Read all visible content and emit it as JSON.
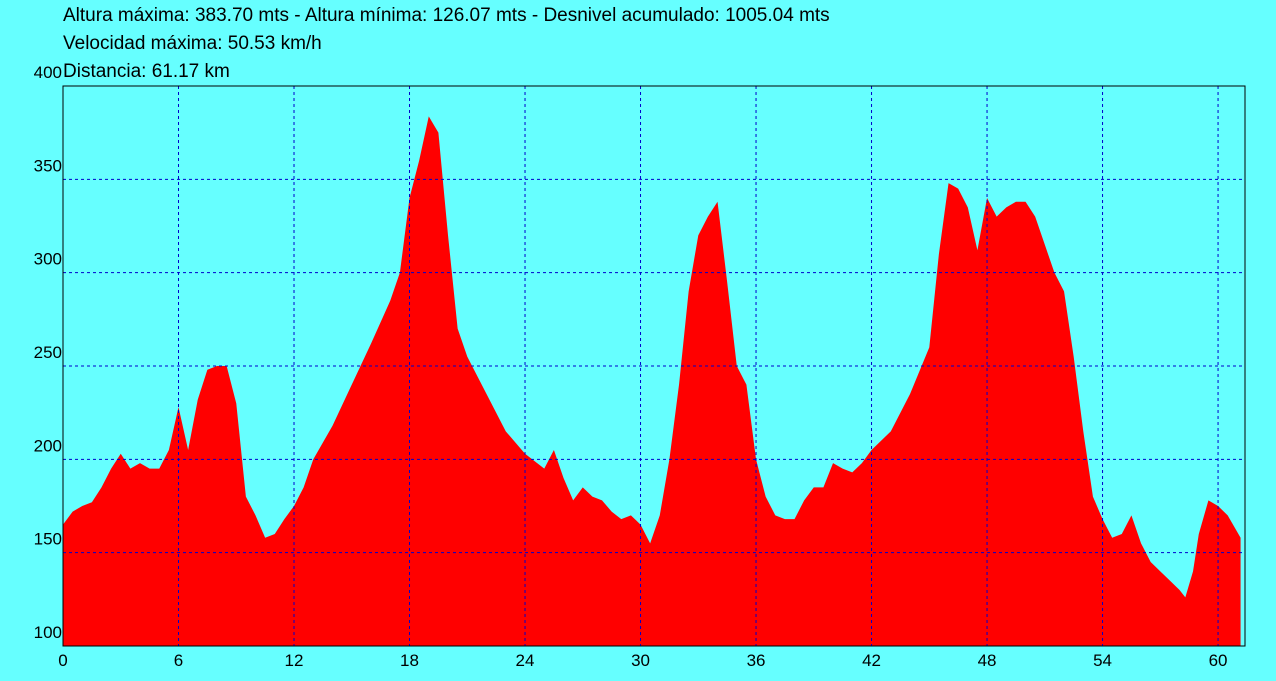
{
  "chart_data": {
    "type": "area",
    "title": "Altura máxima: 383.70 mts - Altura mínima: 126.07 mts - Desnivel acumulado: 1005.04 mts",
    "subtitle": "Velocidad máxima: 50.53 km/h",
    "annotations": [
      "Distancia: 61.17 km"
    ],
    "x": [
      0,
      0.5,
      1,
      1.5,
      2,
      2.5,
      3,
      3.5,
      4,
      4.5,
      5,
      5.5,
      6,
      6.5,
      7,
      7.5,
      8,
      8.5,
      9,
      9.5,
      10,
      10.5,
      11,
      11.5,
      12,
      12.5,
      13,
      14,
      15,
      16,
      17,
      17.5,
      18,
      18.5,
      19,
      19.5,
      20,
      20.5,
      21,
      22,
      23,
      24,
      25,
      25.5,
      26,
      26.5,
      27,
      27.5,
      28,
      28.5,
      29,
      29.5,
      30,
      30.5,
      31,
      31.5,
      32,
      32.5,
      33,
      33.5,
      34,
      34.5,
      35,
      35.5,
      36,
      36.5,
      37,
      37.5,
      38,
      38.5,
      39,
      39.5,
      40,
      40.5,
      41,
      41.5,
      42,
      43,
      44,
      45,
      45.5,
      46,
      46.5,
      47,
      47.5,
      48,
      48.5,
      49,
      49.5,
      50,
      50.5,
      51,
      51.5,
      52,
      52.5,
      53,
      53.5,
      54,
      54.5,
      55,
      55.5,
      56,
      56.5,
      57,
      57.5,
      58,
      58.3,
      58.7,
      59,
      59.5,
      60,
      60.5,
      61.17
    ],
    "values": [
      165,
      172,
      175,
      177,
      185,
      195,
      203,
      195,
      198,
      195,
      195,
      205,
      228,
      205,
      232,
      248,
      250,
      250,
      230,
      180,
      170,
      158,
      160,
      168,
      175,
      185,
      200,
      218,
      240,
      262,
      285,
      300,
      340,
      360,
      383.7,
      375,
      320,
      270,
      255,
      235,
      215,
      203,
      195,
      205,
      190,
      178,
      185,
      180,
      178,
      172,
      168,
      170,
      165,
      155,
      170,
      200,
      240,
      290,
      320,
      330,
      338,
      295,
      250,
      240,
      200,
      180,
      170,
      168,
      168,
      178,
      185,
      185,
      198,
      195,
      193,
      198,
      205,
      215,
      235,
      260,
      310,
      348,
      345,
      335,
      312,
      340,
      330,
      335,
      338,
      338,
      330,
      315,
      300,
      290,
      255,
      215,
      180,
      168,
      158,
      160,
      170,
      155,
      145,
      140,
      135,
      130,
      126.07,
      140,
      160,
      178,
      175,
      170,
      158
    ],
    "color": "#ff0000",
    "background": "#66ffff",
    "xlim": [
      0,
      61.4
    ],
    "ylim": [
      100,
      400
    ],
    "xticks": [
      0,
      6,
      12,
      18,
      24,
      30,
      36,
      42,
      48,
      54,
      60
    ],
    "yticks": [
      100,
      150,
      200,
      250,
      300,
      350,
      400
    ],
    "grid": true
  }
}
